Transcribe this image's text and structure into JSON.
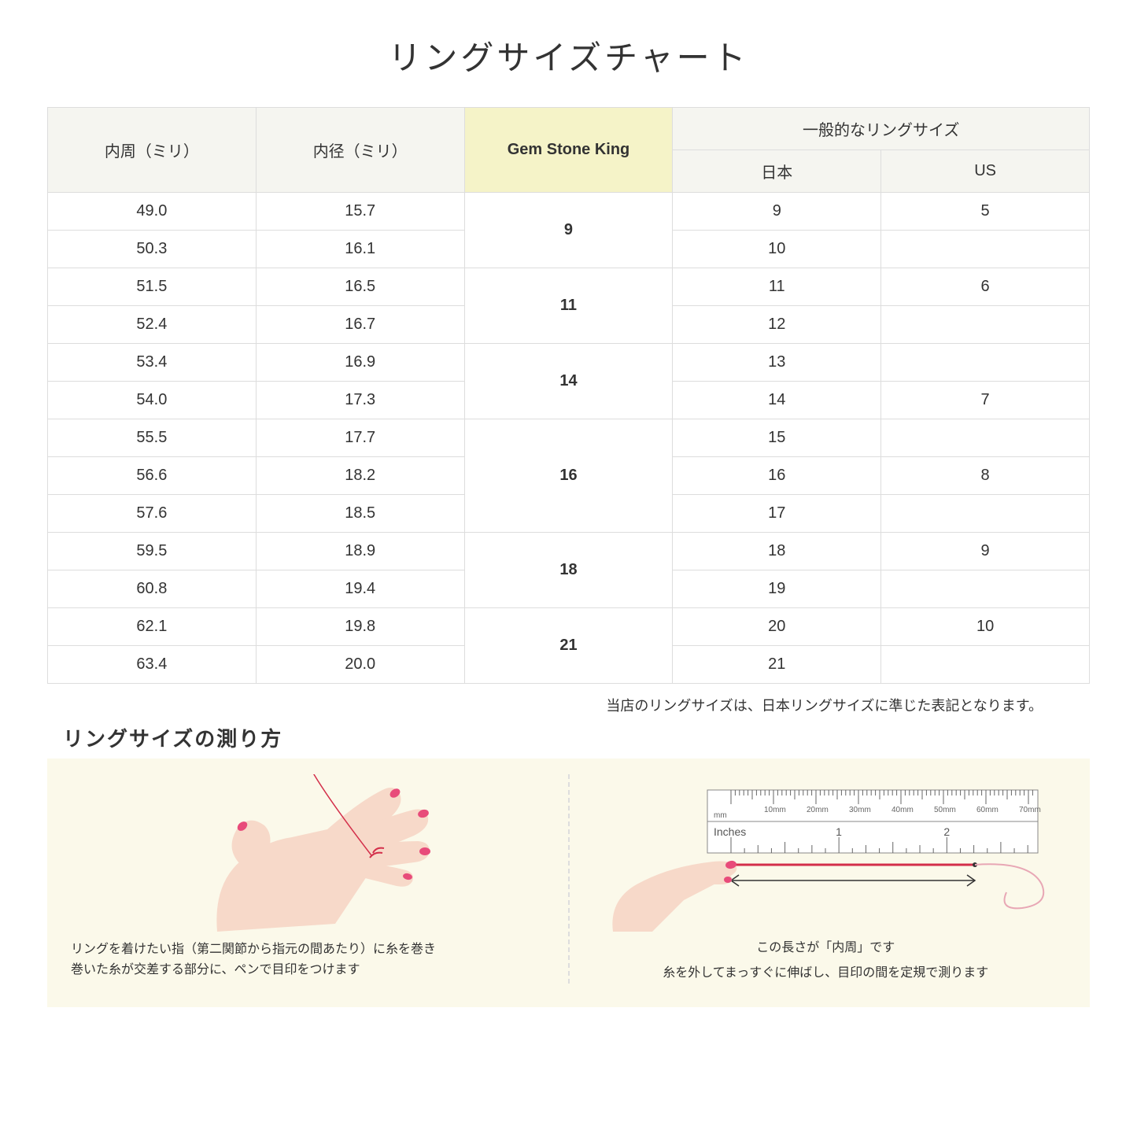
{
  "title": "リングサイズチャート",
  "table": {
    "headers": {
      "col1": "内周（ミリ）",
      "col2": "内径（ミリ）",
      "col3": "Gem Stone King",
      "col4_group": "一般的なリングサイズ",
      "col4a": "日本",
      "col4b": "US"
    },
    "groups": [
      {
        "gsk": "9",
        "rows": [
          {
            "c": "49.0",
            "d": "15.7",
            "jp": "9",
            "us": "5"
          },
          {
            "c": "50.3",
            "d": "16.1",
            "jp": "10",
            "us": ""
          }
        ]
      },
      {
        "gsk": "11",
        "rows": [
          {
            "c": "51.5",
            "d": "16.5",
            "jp": "11",
            "us": "6"
          },
          {
            "c": "52.4",
            "d": "16.7",
            "jp": "12",
            "us": ""
          }
        ]
      },
      {
        "gsk": "14",
        "rows": [
          {
            "c": "53.4",
            "d": "16.9",
            "jp": "13",
            "us": ""
          },
          {
            "c": "54.0",
            "d": "17.3",
            "jp": "14",
            "us": "7"
          }
        ]
      },
      {
        "gsk": "16",
        "rows": [
          {
            "c": "55.5",
            "d": "17.7",
            "jp": "15",
            "us": ""
          },
          {
            "c": "56.6",
            "d": "18.2",
            "jp": "16",
            "us": "8"
          },
          {
            "c": "57.6",
            "d": "18.5",
            "jp": "17",
            "us": ""
          }
        ]
      },
      {
        "gsk": "18",
        "rows": [
          {
            "c": "59.5",
            "d": "18.9",
            "jp": "18",
            "us": "9"
          },
          {
            "c": "60.8",
            "d": "19.4",
            "jp": "19",
            "us": ""
          }
        ]
      },
      {
        "gsk": "21",
        "rows": [
          {
            "c": "62.1",
            "d": "19.8",
            "jp": "20",
            "us": "10"
          },
          {
            "c": "63.4",
            "d": "20.0",
            "jp": "21",
            "us": ""
          }
        ]
      }
    ]
  },
  "note": "当店のリングサイズは、日本リングサイズに準じた表記となります。",
  "subtitle": "リングサイズの測り方",
  "instructions": {
    "left_line1": "リングを着けたい指（第二関節から指元の間あたり）に糸を巻き",
    "left_line2": "巻いた糸が交差する部分に、ペンで目印をつけます",
    "right_length_label": "この長さが「内周」です",
    "right_caption": "糸を外してまっすぐに伸ばし、目印の間を定規で測ります",
    "ruler": {
      "mm_label": "mm",
      "inches_label": "Inches",
      "mm_ticks": [
        "10mm",
        "20mm",
        "30mm",
        "40mm",
        "50mm",
        "60mm",
        "70mm"
      ],
      "inch_ticks": [
        "1",
        "2"
      ]
    }
  },
  "colors": {
    "header_bg": "#f5f5f0",
    "highlight_bg": "#f5f3c8",
    "border": "#dddddd",
    "instruction_bg": "#fbf9ea",
    "hand_skin": "#f7d9c9",
    "nail": "#e84b7a",
    "thread": "#d32f4a"
  }
}
